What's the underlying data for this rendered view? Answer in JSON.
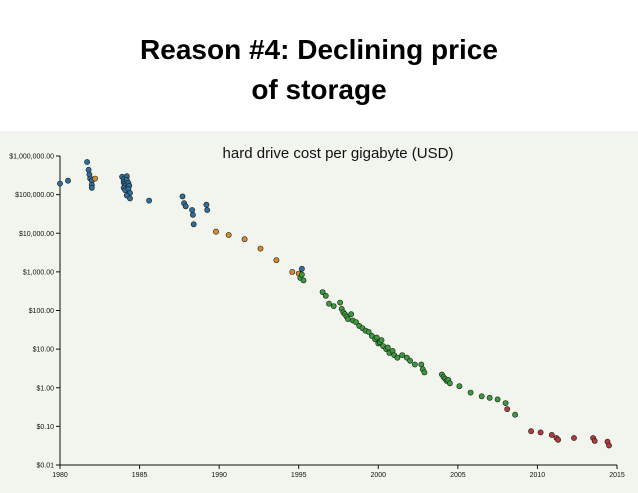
{
  "slide": {
    "title_line1": "Reason #4: Declining price",
    "title_line2": "of storage"
  },
  "colors": {
    "panel_bg": "#f1f5ee",
    "blue": "#2f6d9a",
    "orange": "#d98a2f",
    "green": "#3b9a3b",
    "red": "#b23a3a",
    "axis": "#111111"
  },
  "chart_data": {
    "type": "scatter",
    "title": "hard drive cost per gigabyte (USD)",
    "xlabel": "",
    "ylabel": "",
    "xlim": [
      1980,
      2015
    ],
    "ylim": [
      0.01,
      1000000
    ],
    "yscale": "log",
    "x_ticks": [
      "1980",
      "1985",
      "1990",
      "1995",
      "2000",
      "2005",
      "2010",
      "2015"
    ],
    "y_ticks": [
      "$1,000,000.00",
      "$100,000.00",
      "$10,000.00",
      "$1,000.00",
      "$100.00",
      "$10.00",
      "$1.00",
      "$0.10",
      "$0.01"
    ],
    "series": [
      {
        "name": "blue",
        "color": "#2f6d9a",
        "points": [
          [
            1980.0,
            193000
          ],
          [
            1980.5,
            230000
          ],
          [
            1981.7,
            700000
          ],
          [
            1981.8,
            440000
          ],
          [
            1981.85,
            330000
          ],
          [
            1981.9,
            260000
          ],
          [
            1982.0,
            230000
          ],
          [
            1982.0,
            180000
          ],
          [
            1982.0,
            150000
          ],
          [
            1983.9,
            290000
          ],
          [
            1984.0,
            250000
          ],
          [
            1984.0,
            210000
          ],
          [
            1984.05,
            190000
          ],
          [
            1984.1,
            170000
          ],
          [
            1984.0,
            150000
          ],
          [
            1984.1,
            130000
          ],
          [
            1984.2,
            300000
          ],
          [
            1984.2,
            240000
          ],
          [
            1984.3,
            200000
          ],
          [
            1984.35,
            170000
          ],
          [
            1984.3,
            140000
          ],
          [
            1984.4,
            110000
          ],
          [
            1984.2,
            95000
          ],
          [
            1984.4,
            80000
          ],
          [
            1985.6,
            70000
          ],
          [
            1987.7,
            90000
          ],
          [
            1987.8,
            60000
          ],
          [
            1987.9,
            50000
          ],
          [
            1988.3,
            40000
          ],
          [
            1988.35,
            30000
          ],
          [
            1988.4,
            17000
          ],
          [
            1989.2,
            55000
          ],
          [
            1989.25,
            40000
          ],
          [
            1995.1,
            900
          ],
          [
            1995.2,
            1200
          ]
        ]
      },
      {
        "name": "orange",
        "color": "#d98a2f",
        "points": [
          [
            1982.2,
            260000
          ],
          [
            1989.8,
            11000
          ],
          [
            1990.6,
            9000
          ],
          [
            1991.6,
            7000
          ],
          [
            1992.6,
            4000
          ],
          [
            1993.6,
            2000
          ],
          [
            1994.6,
            1000
          ],
          [
            1995.0,
            900
          ]
        ]
      },
      {
        "name": "green",
        "color": "#3b9a3b",
        "points": [
          [
            1995.1,
            700
          ],
          [
            1995.2,
            850
          ],
          [
            1995.3,
            600
          ],
          [
            1996.5,
            300
          ],
          [
            1996.7,
            240
          ],
          [
            1996.9,
            150
          ],
          [
            1997.2,
            130
          ],
          [
            1997.6,
            160
          ],
          [
            1997.7,
            110
          ],
          [
            1997.8,
            90
          ],
          [
            1997.9,
            80
          ],
          [
            1998.0,
            70
          ],
          [
            1998.1,
            60
          ],
          [
            1998.3,
            80
          ],
          [
            1998.4,
            55
          ],
          [
            1998.6,
            50
          ],
          [
            1998.8,
            40
          ],
          [
            1999.0,
            35
          ],
          [
            1999.2,
            30
          ],
          [
            1999.4,
            28
          ],
          [
            1999.6,
            22
          ],
          [
            1999.8,
            18
          ],
          [
            1999.9,
            20
          ],
          [
            2000.0,
            14
          ],
          [
            2000.1,
            15
          ],
          [
            2000.2,
            17
          ],
          [
            2000.3,
            12
          ],
          [
            2000.5,
            10
          ],
          [
            2000.6,
            11
          ],
          [
            2000.7,
            8
          ],
          [
            2000.9,
            9
          ],
          [
            2001.0,
            7
          ],
          [
            2001.2,
            6
          ],
          [
            2001.5,
            7
          ],
          [
            2001.8,
            6
          ],
          [
            2002.0,
            5
          ],
          [
            2002.3,
            4
          ],
          [
            2002.7,
            4
          ],
          [
            2002.8,
            3
          ],
          [
            2002.9,
            2.5
          ],
          [
            2004.0,
            2.2
          ],
          [
            2004.1,
            1.9
          ],
          [
            2004.2,
            1.7
          ],
          [
            2004.3,
            1.5
          ],
          [
            2004.4,
            1.6
          ],
          [
            2004.5,
            1.3
          ],
          [
            2005.1,
            1.1
          ],
          [
            2005.8,
            0.75
          ],
          [
            2006.5,
            0.6
          ],
          [
            2007.0,
            0.55
          ],
          [
            2007.5,
            0.5
          ],
          [
            2008.0,
            0.4
          ],
          [
            2008.6,
            0.2
          ]
        ]
      },
      {
        "name": "red",
        "color": "#b23a3a",
        "points": [
          [
            2008.1,
            0.28
          ],
          [
            2009.6,
            0.075
          ],
          [
            2010.2,
            0.07
          ],
          [
            2010.9,
            0.06
          ],
          [
            2011.2,
            0.05
          ],
          [
            2011.3,
            0.045
          ],
          [
            2012.3,
            0.05
          ],
          [
            2013.5,
            0.05
          ],
          [
            2013.6,
            0.042
          ],
          [
            2014.4,
            0.04
          ],
          [
            2014.5,
            0.032
          ]
        ]
      }
    ]
  }
}
